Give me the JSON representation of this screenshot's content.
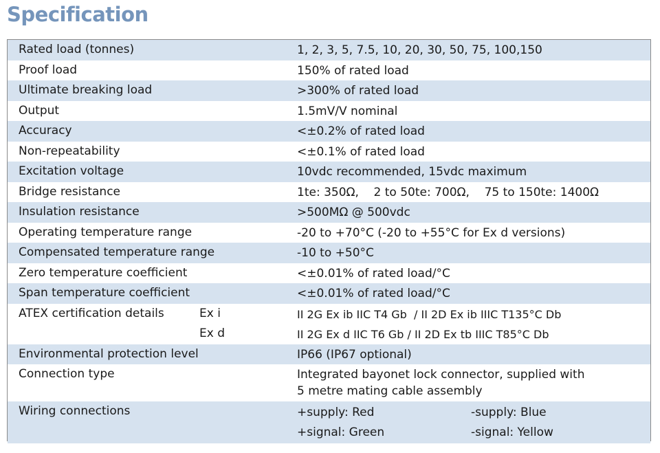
{
  "header": {
    "title": "Specification"
  },
  "table": {
    "rows": [
      {
        "label": "Rated load (tonnes)",
        "value": "1, 2, 3, 5, 7.5, 10, 20, 30, 50, 75, 100,150"
      },
      {
        "label": "Proof load",
        "value": "150% of rated load"
      },
      {
        "label": "Ultimate breaking load",
        "value": ">300% of rated load"
      },
      {
        "label": "Output",
        "value": "1.5mV/V nominal"
      },
      {
        "label": "Accuracy",
        "value": "<±0.2% of rated load"
      },
      {
        "label": "Non-repeatability",
        "value": "<±0.1% of rated load"
      },
      {
        "label": "Excitation voltage",
        "value": "10vdc recommended, 15vdc maximum"
      },
      {
        "label": "Bridge resistance",
        "value": "1te: 350Ω,    2 to 50te: 700Ω,    75 to 150te: 1400Ω"
      },
      {
        "label": "Insulation resistance",
        "value": ">500MΩ @ 500vdc"
      },
      {
        "label": "Operating temperature range",
        "value": "-20 to +70°C (-20 to +55°C for Ex d versions)"
      },
      {
        "label": "Compensated temperature range",
        "value": "-10 to +50°C"
      },
      {
        "label": "Zero temperature coefficient",
        "value": "<±0.01% of rated load/°C"
      },
      {
        "label": "Span temperature coefficient",
        "value": "<±0.01% of rated load/°C"
      },
      {
        "label": "ATEX certification details",
        "entries": [
          {
            "label": "Ex i",
            "value": "II 2G Ex ib IIC T4 Gb  / II 2D Ex ib IIIC T135°C Db"
          },
          {
            "label": "Ex d",
            "value": "II 2G Ex d IIC T6 Gb / II 2D Ex tb IIIC T85°C Db"
          }
        ]
      },
      {
        "label": "Environmental protection level",
        "value": "IP66 (IP67 optional)"
      },
      {
        "label": "Connection type",
        "value_lines": [
          "Integrated bayonet lock connector, supplied with",
          "5 metre mating cable assembly"
        ]
      },
      {
        "label": "Wiring connections",
        "pairs": [
          [
            "+supply: Red",
            "-supply: Blue"
          ],
          [
            "+signal: Green",
            "-signal: Yellow"
          ]
        ]
      }
    ]
  }
}
